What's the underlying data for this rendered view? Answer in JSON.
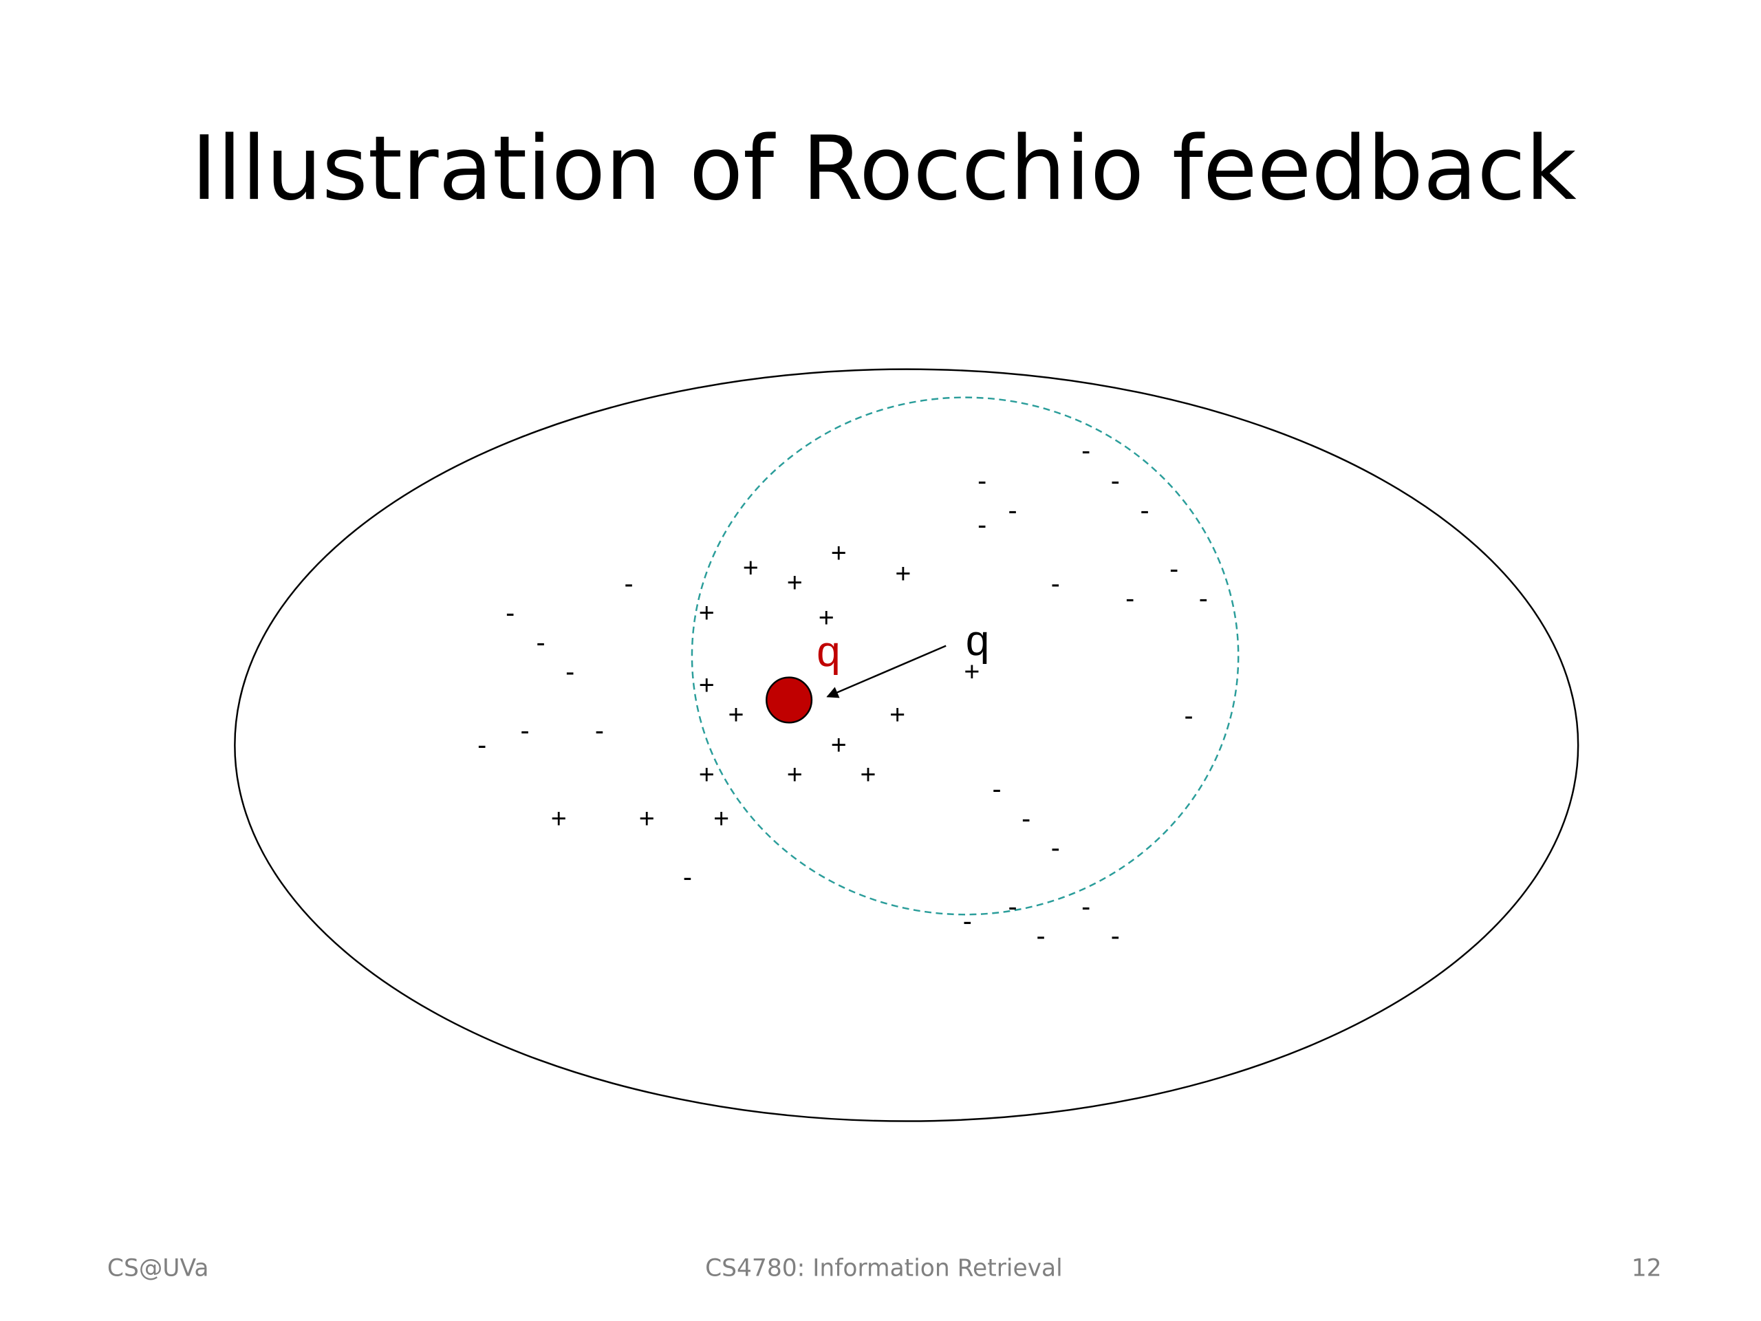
{
  "slide": {
    "title": "Illustration of Rocchio feedback",
    "footer": {
      "left": "CS@UVa",
      "center": "CS4780: Information Retrieval",
      "right": "12"
    },
    "diagram": {
      "new_query_label": "q",
      "original_query_label": "q",
      "points": [
        "+",
        "+",
        "+",
        "+",
        "+",
        "+",
        "+",
        "+",
        "+",
        "+",
        "+",
        "+",
        "+",
        "+",
        "+",
        "+",
        "+",
        "-",
        "-",
        "-",
        "-",
        "-",
        "-",
        "-",
        "-",
        "-",
        "-",
        "-",
        "-",
        "-",
        "-",
        "-",
        "-",
        "-",
        "-",
        "-",
        "-",
        "-",
        "-",
        "-",
        "-",
        "-",
        "-",
        "-"
      ]
    }
  }
}
